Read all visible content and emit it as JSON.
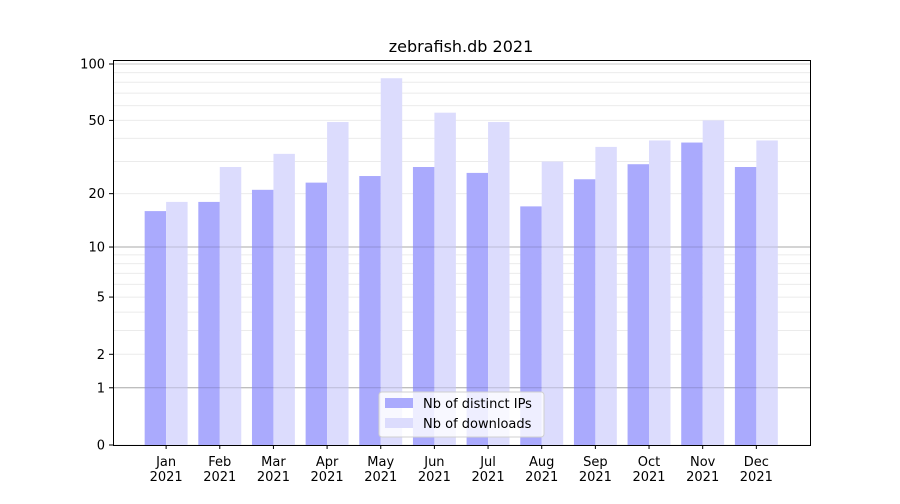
{
  "chart_data": {
    "type": "bar",
    "title": "zebrafish.db 2021",
    "xlabel": "",
    "ylabel": "",
    "yscale": "log(1+y)",
    "ylim": [
      0,
      105
    ],
    "yticks": [
      0,
      1,
      2,
      5,
      10,
      20,
      50,
      100
    ],
    "grid": true,
    "legend_position": "bottom-center",
    "categories": [
      "Jan\n2021",
      "Feb\n2021",
      "Mar\n2021",
      "Apr\n2021",
      "May\n2021",
      "Jun\n2021",
      "Jul\n2021",
      "Aug\n2021",
      "Sep\n2021",
      "Oct\n2021",
      "Nov\n2021",
      "Dec\n2021"
    ],
    "series": [
      {
        "name": "Nb of distinct IPs",
        "color": "#aaaafd",
        "values": [
          16,
          18,
          21,
          23,
          25,
          28,
          26,
          17,
          24,
          29,
          38,
          28
        ]
      },
      {
        "name": "Nb of downloads",
        "color": "#dcdcfd",
        "values": [
          18,
          28,
          33,
          49,
          84,
          55,
          49,
          30,
          36,
          39,
          50,
          39
        ]
      }
    ]
  }
}
